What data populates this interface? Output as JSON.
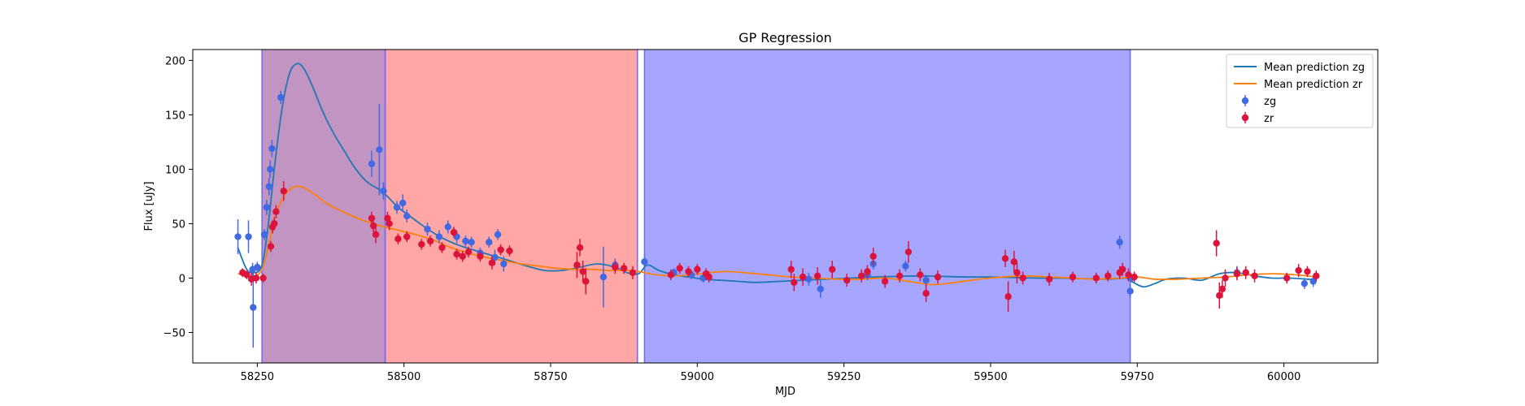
{
  "chart_data": {
    "type": "scatter",
    "title": "GP Regression",
    "xlabel": "MJD",
    "ylabel": "Flux [uJy]",
    "xlim": [
      58140,
      60160
    ],
    "ylim": [
      -78,
      210
    ],
    "xticks": [
      58250,
      58500,
      58750,
      59000,
      59250,
      59500,
      59750,
      60000
    ],
    "yticks": [
      -50,
      0,
      50,
      100,
      150,
      200
    ],
    "grid": false,
    "legend_position": "top-right",
    "legend": [
      "Mean prediction zg",
      "Mean prediction zr",
      "zg",
      "zr"
    ],
    "shaded_regions": [
      {
        "x": [
          58258,
          58468
        ],
        "color": "#a05aa0",
        "alpha": 0.65,
        "edge": "#6a6aff"
      },
      {
        "x": [
          58468,
          58898
        ],
        "color": "#ff0000",
        "alpha": 0.35,
        "edge": "#6a6aff"
      },
      {
        "x": [
          58910,
          59738
        ],
        "color": "#0000ff",
        "alpha": 0.35,
        "edge": "#6a6aff"
      }
    ],
    "series": [
      {
        "name": "Mean prediction zg",
        "kind": "line",
        "color": "#1f77b4",
        "x": [
          58217,
          58232,
          58245,
          58255,
          58262,
          58270,
          58280,
          58292,
          58305,
          58318,
          58330,
          58345,
          58360,
          58378,
          58398,
          58418,
          58438,
          58456,
          58470,
          58490,
          58510,
          58530,
          58555,
          58580,
          58605,
          58630,
          58655,
          58680,
          58710,
          58740,
          58770,
          58800,
          58830,
          58860,
          58880,
          58900,
          58915,
          58935,
          58960,
          58985,
          59010,
          59040,
          59070,
          59100,
          59140,
          59180,
          59220,
          59260,
          59300,
          59340,
          59380,
          59420,
          59460,
          59500,
          59540,
          59580,
          59620,
          59660,
          59700,
          59730,
          59740,
          59760,
          59780,
          59800,
          59830,
          59860,
          59890,
          59920,
          59950,
          59980,
          60010,
          60040,
          60055
        ],
        "y": [
          28,
          8,
          5,
          8,
          22,
          55,
          105,
          155,
          188,
          197,
          192,
          175,
          155,
          135,
          117,
          100,
          88,
          82,
          76,
          65,
          57,
          49,
          40,
          33,
          28,
          24,
          20,
          16,
          11,
          7,
          7,
          10,
          13,
          10,
          5,
          4,
          12,
          7,
          3,
          1,
          -1,
          -2,
          -3,
          -4,
          -3,
          -2,
          -1,
          0,
          1,
          1.5,
          2,
          1.5,
          1,
          1,
          0.5,
          0,
          0,
          -0.5,
          -1,
          0,
          -3,
          -8,
          -5,
          -1,
          0,
          -2,
          4,
          5,
          2,
          0,
          0,
          -1,
          -2
        ]
      },
      {
        "name": "Mean prediction zr",
        "kind": "line",
        "color": "#ff7f0e",
        "x": [
          58217,
          58240,
          58255,
          58265,
          58280,
          58295,
          58310,
          58325,
          58345,
          58370,
          58400,
          58430,
          58460,
          58490,
          58520,
          58550,
          58580,
          58610,
          58640,
          58670,
          58700,
          58730,
          58760,
          58790,
          58820,
          58850,
          58880,
          58900,
          58930,
          58960,
          58990,
          59020,
          59050,
          59080,
          59120,
          59160,
          59200,
          59240,
          59280,
          59320,
          59360,
          59400,
          59440,
          59480,
          59520,
          59560,
          59600,
          59640,
          59680,
          59720,
          59750,
          59780,
          59820,
          59860,
          59900,
          59940,
          59980,
          60020,
          60055
        ],
        "y": [
          4,
          2,
          5,
          20,
          55,
          75,
          83,
          84,
          78,
          68,
          60,
          53,
          48,
          44,
          40,
          35,
          28,
          23,
          19,
          16,
          13,
          11,
          9,
          8,
          8,
          7,
          7,
          6,
          3,
          2,
          3,
          5,
          6,
          5,
          3,
          1,
          0,
          -1,
          -1,
          0,
          -3,
          -6,
          -4,
          -1,
          1,
          2,
          1,
          0,
          -1,
          0,
          1,
          -1,
          -1,
          0,
          1,
          3,
          4,
          3,
          1
        ]
      },
      {
        "name": "zg",
        "kind": "errorbar",
        "color": "#4169e1",
        "points": [
          [
            58217,
            38,
            16
          ],
          [
            58235,
            38,
            15
          ],
          [
            58243,
            -27,
            37
          ],
          [
            58242,
            8,
            6
          ],
          [
            58250,
            10,
            5
          ],
          [
            58262,
            40,
            5
          ],
          [
            58266,
            65,
            7
          ],
          [
            58270,
            84,
            8
          ],
          [
            58272,
            100,
            8
          ],
          [
            58275,
            119,
            8
          ],
          [
            58290,
            166,
            6
          ],
          [
            58445,
            105,
            12
          ],
          [
            58458,
            118,
            42
          ],
          [
            58465,
            80,
            8
          ],
          [
            58488,
            65,
            6
          ],
          [
            58498,
            69,
            8
          ],
          [
            58505,
            57,
            6
          ],
          [
            58540,
            45,
            6
          ],
          [
            58560,
            38,
            6
          ],
          [
            58575,
            47,
            6
          ],
          [
            58590,
            38,
            6
          ],
          [
            58605,
            34,
            5
          ],
          [
            58615,
            33,
            5
          ],
          [
            58630,
            23,
            5
          ],
          [
            58645,
            33,
            5
          ],
          [
            58655,
            19,
            7
          ],
          [
            58660,
            40,
            5
          ],
          [
            58670,
            13,
            7
          ],
          [
            58840,
            1,
            28
          ],
          [
            58860,
            12,
            6
          ],
          [
            58910,
            15,
            5
          ],
          [
            58960,
            5,
            4
          ],
          [
            58990,
            3,
            4
          ],
          [
            59010,
            0,
            4
          ],
          [
            59190,
            -1,
            6
          ],
          [
            59210,
            -10,
            8
          ],
          [
            59290,
            3,
            5
          ],
          [
            59300,
            13,
            5
          ],
          [
            59355,
            11,
            5
          ],
          [
            59390,
            -2,
            5
          ],
          [
            59720,
            33,
            6
          ],
          [
            59738,
            -12,
            6
          ],
          [
            59740,
            0,
            4
          ],
          [
            59920,
            5,
            6
          ],
          [
            60035,
            -5,
            5
          ],
          [
            60050,
            -3,
            5
          ]
        ]
      },
      {
        "name": "zr",
        "kind": "errorbar",
        "color": "#dc143c",
        "points": [
          [
            58225,
            5,
            4
          ],
          [
            58232,
            3,
            4
          ],
          [
            58240,
            -1,
            6
          ],
          [
            58248,
            0,
            5
          ],
          [
            58260,
            0,
            4
          ],
          [
            58273,
            29,
            5
          ],
          [
            58276,
            47,
            6
          ],
          [
            58279,
            50,
            6
          ],
          [
            58282,
            61,
            6
          ],
          [
            58295,
            80,
            9
          ],
          [
            58445,
            55,
            6
          ],
          [
            58448,
            48,
            6
          ],
          [
            58452,
            40,
            8
          ],
          [
            58472,
            55,
            6
          ],
          [
            58475,
            50,
            6
          ],
          [
            58490,
            36,
            5
          ],
          [
            58505,
            38,
            5
          ],
          [
            58530,
            31,
            5
          ],
          [
            58545,
            34,
            5
          ],
          [
            58565,
            28,
            5
          ],
          [
            58585,
            42,
            5
          ],
          [
            58590,
            22,
            5
          ],
          [
            58600,
            20,
            5
          ],
          [
            58610,
            24,
            5
          ],
          [
            58630,
            20,
            5
          ],
          [
            58650,
            14,
            6
          ],
          [
            58665,
            26,
            5
          ],
          [
            58680,
            25,
            5
          ],
          [
            58795,
            12,
            12
          ],
          [
            58800,
            28,
            8
          ],
          [
            58805,
            6,
            10
          ],
          [
            58810,
            -3,
            12
          ],
          [
            58860,
            10,
            6
          ],
          [
            58875,
            9,
            5
          ],
          [
            58890,
            5,
            6
          ],
          [
            58955,
            3,
            5
          ],
          [
            58970,
            9,
            5
          ],
          [
            58985,
            6,
            5
          ],
          [
            59000,
            8,
            5
          ],
          [
            59015,
            4,
            5
          ],
          [
            59020,
            1,
            5
          ],
          [
            59160,
            8,
            8
          ],
          [
            59165,
            -4,
            8
          ],
          [
            59180,
            1,
            8
          ],
          [
            59205,
            2,
            8
          ],
          [
            59230,
            8,
            8
          ],
          [
            59255,
            -2,
            6
          ],
          [
            59280,
            2,
            6
          ],
          [
            59290,
            6,
            6
          ],
          [
            59300,
            20,
            8
          ],
          [
            59320,
            -3,
            6
          ],
          [
            59345,
            2,
            6
          ],
          [
            59360,
            24,
            10
          ],
          [
            59380,
            3,
            6
          ],
          [
            59390,
            -14,
            8
          ],
          [
            59410,
            1,
            6
          ],
          [
            59525,
            18,
            8
          ],
          [
            59530,
            -17,
            14
          ],
          [
            59540,
            15,
            10
          ],
          [
            59545,
            5,
            10
          ],
          [
            59555,
            0,
            6
          ],
          [
            59600,
            -1,
            6
          ],
          [
            59640,
            1,
            5
          ],
          [
            59680,
            0,
            5
          ],
          [
            59700,
            2,
            5
          ],
          [
            59720,
            5,
            6
          ],
          [
            59725,
            8,
            6
          ],
          [
            59735,
            3,
            6
          ],
          [
            59745,
            1,
            5
          ],
          [
            59885,
            32,
            12
          ],
          [
            59890,
            -16,
            12
          ],
          [
            59895,
            -10,
            8
          ],
          [
            59900,
            0,
            8
          ],
          [
            59920,
            4,
            6
          ],
          [
            59935,
            5,
            6
          ],
          [
            59950,
            2,
            6
          ],
          [
            60005,
            0,
            5
          ],
          [
            60025,
            7,
            6
          ],
          [
            60040,
            6,
            5
          ],
          [
            60055,
            2,
            5
          ]
        ]
      }
    ]
  }
}
